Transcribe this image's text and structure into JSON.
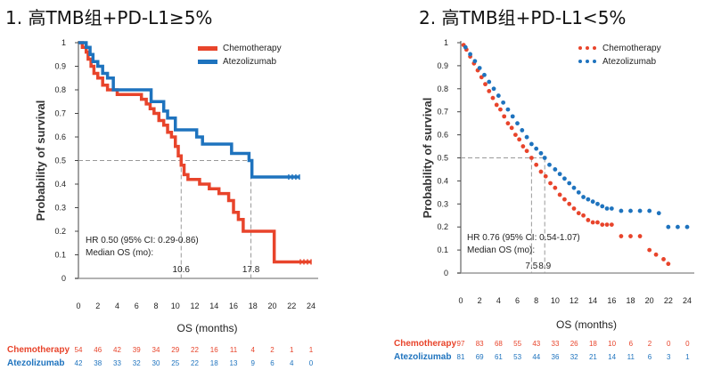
{
  "titles": [
    "1. 高TMB组+PD-L1≥5%",
    "2. 高TMB组+PD-L1<5%"
  ],
  "colors": {
    "chemo": "#e8442b",
    "atezo": "#1e73be",
    "grid": "#999999"
  },
  "chart_data": [
    {
      "type": "line",
      "ylabel": "Probability of survival",
      "xlabel": "OS (months)",
      "xlim": [
        0,
        24
      ],
      "ylim": [
        0,
        1
      ],
      "xticks": [
        0,
        2,
        4,
        6,
        8,
        10,
        12,
        14,
        16,
        18,
        20,
        22,
        24
      ],
      "yticks": [
        "0",
        "0.1",
        "0.2",
        "0.3",
        "0.4",
        "0.5",
        "0.6",
        "0.7",
        "0.8",
        "0.9",
        "1"
      ],
      "legend": [
        "Chemotherapy",
        "Atezolizumab"
      ],
      "annotation": [
        "HR 0.50 (95% CI: 0.29-0.86)",
        "Median OS (mo):"
      ],
      "median_labels": [
        "10.6",
        "17.8"
      ],
      "medians": [
        10.6,
        17.8
      ],
      "series": [
        {
          "name": "Chemotherapy",
          "style": "step",
          "points": [
            [
              0,
              1
            ],
            [
              0.4,
              0.98
            ],
            [
              0.8,
              0.96
            ],
            [
              1,
              0.93
            ],
            [
              1.3,
              0.9
            ],
            [
              1.6,
              0.87
            ],
            [
              2,
              0.85
            ],
            [
              2.5,
              0.82
            ],
            [
              3,
              0.8
            ],
            [
              4,
              0.78
            ],
            [
              6.5,
              0.76
            ],
            [
              7,
              0.74
            ],
            [
              7.4,
              0.72
            ],
            [
              7.8,
              0.7
            ],
            [
              8.3,
              0.67
            ],
            [
              8.8,
              0.65
            ],
            [
              9.2,
              0.62
            ],
            [
              9.6,
              0.6
            ],
            [
              10,
              0.56
            ],
            [
              10.3,
              0.52
            ],
            [
              10.6,
              0.48
            ],
            [
              10.9,
              0.44
            ],
            [
              11.3,
              0.42
            ],
            [
              12.5,
              0.4
            ],
            [
              13.5,
              0.38
            ],
            [
              14.5,
              0.36
            ],
            [
              15.5,
              0.33
            ],
            [
              16,
              0.28
            ],
            [
              16.5,
              0.25
            ],
            [
              17,
              0.2
            ],
            [
              17.8,
              0.2
            ],
            [
              20.2,
              0.07
            ],
            [
              24,
              0.07
            ]
          ]
        },
        {
          "name": "Atezolizumab",
          "style": "step",
          "points": [
            [
              0,
              1
            ],
            [
              0.8,
              0.98
            ],
            [
              1.2,
              0.95
            ],
            [
              1.5,
              0.92
            ],
            [
              2,
              0.9
            ],
            [
              2.5,
              0.87
            ],
            [
              3,
              0.85
            ],
            [
              3.6,
              0.8
            ],
            [
              4.5,
              0.8
            ],
            [
              7.5,
              0.75
            ],
            [
              8.8,
              0.71
            ],
            [
              9.2,
              0.68
            ],
            [
              10,
              0.63
            ],
            [
              12.2,
              0.6
            ],
            [
              12.8,
              0.57
            ],
            [
              15.8,
              0.53
            ],
            [
              17.6,
              0.5
            ],
            [
              17.9,
              0.43
            ],
            [
              22.8,
              0.43
            ]
          ]
        }
      ]
    },
    {
      "type": "scatter",
      "ylabel": "Probability of survival",
      "xlabel": "OS (months)",
      "xlim": [
        0,
        24
      ],
      "ylim": [
        0,
        1
      ],
      "xticks": [
        0,
        2,
        4,
        6,
        8,
        10,
        12,
        14,
        16,
        18,
        20,
        22,
        24
      ],
      "yticks": [
        "0",
        "0.1",
        "0.2",
        "0.3",
        "0.4",
        "0.5",
        "0.6",
        "0.7",
        "0.8",
        "0.9",
        "1"
      ],
      "legend": [
        "Chemotherapy",
        "Atezolizumab"
      ],
      "annotation": [
        "HR 0.76 (95% CI: 0.54-1.07)",
        "Median OS (mo):"
      ],
      "median_labels": [
        "7.5",
        "8.9"
      ],
      "medians": [
        7.5,
        8.9
      ],
      "series": [
        {
          "name": "Chemotherapy",
          "style": "dots",
          "points": [
            [
              0.3,
              0.99
            ],
            [
              0.6,
              0.97
            ],
            [
              1,
              0.94
            ],
            [
              1.4,
              0.91
            ],
            [
              1.8,
              0.88
            ],
            [
              2.2,
              0.85
            ],
            [
              2.6,
              0.82
            ],
            [
              3,
              0.79
            ],
            [
              3.4,
              0.76
            ],
            [
              3.8,
              0.73
            ],
            [
              4.2,
              0.71
            ],
            [
              4.6,
              0.68
            ],
            [
              5,
              0.65
            ],
            [
              5.4,
              0.63
            ],
            [
              5.8,
              0.6
            ],
            [
              6.2,
              0.58
            ],
            [
              6.6,
              0.55
            ],
            [
              7,
              0.53
            ],
            [
              7.5,
              0.5
            ],
            [
              8,
              0.47
            ],
            [
              8.5,
              0.44
            ],
            [
              9,
              0.42
            ],
            [
              9.5,
              0.39
            ],
            [
              10,
              0.37
            ],
            [
              10.5,
              0.34
            ],
            [
              11,
              0.32
            ],
            [
              11.5,
              0.3
            ],
            [
              12,
              0.28
            ],
            [
              12.5,
              0.26
            ],
            [
              13,
              0.25
            ],
            [
              13.5,
              0.23
            ],
            [
              14,
              0.22
            ],
            [
              14.5,
              0.22
            ],
            [
              15,
              0.21
            ],
            [
              15.5,
              0.21
            ],
            [
              16,
              0.21
            ],
            [
              17,
              0.16
            ],
            [
              18,
              0.16
            ],
            [
              19,
              0.16
            ],
            [
              20,
              0.1
            ],
            [
              20.7,
              0.08
            ],
            [
              21.5,
              0.06
            ],
            [
              22,
              0.04
            ]
          ]
        },
        {
          "name": "Atezolizumab",
          "style": "dots",
          "points": [
            [
              0.5,
              0.98
            ],
            [
              1,
              0.95
            ],
            [
              1.5,
              0.92
            ],
            [
              2,
              0.89
            ],
            [
              2.5,
              0.86
            ],
            [
              3,
              0.83
            ],
            [
              3.5,
              0.8
            ],
            [
              4,
              0.77
            ],
            [
              4.5,
              0.74
            ],
            [
              5,
              0.71
            ],
            [
              5.5,
              0.68
            ],
            [
              6,
              0.65
            ],
            [
              6.5,
              0.62
            ],
            [
              7,
              0.59
            ],
            [
              7.5,
              0.56
            ],
            [
              8,
              0.54
            ],
            [
              8.5,
              0.52
            ],
            [
              8.9,
              0.5
            ],
            [
              9.4,
              0.47
            ],
            [
              10,
              0.45
            ],
            [
              10.5,
              0.43
            ],
            [
              11,
              0.41
            ],
            [
              11.5,
              0.39
            ],
            [
              12,
              0.37
            ],
            [
              12.5,
              0.35
            ],
            [
              13,
              0.33
            ],
            [
              13.5,
              0.32
            ],
            [
              14,
              0.31
            ],
            [
              14.5,
              0.3
            ],
            [
              15,
              0.29
            ],
            [
              15.5,
              0.28
            ],
            [
              16,
              0.28
            ],
            [
              17,
              0.27
            ],
            [
              18,
              0.27
            ],
            [
              19,
              0.27
            ],
            [
              20,
              0.27
            ],
            [
              21,
              0.26
            ],
            [
              22,
              0.2
            ],
            [
              23,
              0.2
            ],
            [
              24,
              0.2
            ]
          ]
        }
      ]
    }
  ],
  "risk_tables": [
    {
      "rows": [
        {
          "label": "Chemotherapy",
          "values": [
            "54",
            "46",
            "42",
            "39",
            "34",
            "29",
            "22",
            "16",
            "11",
            "4",
            "2",
            "1",
            "1"
          ]
        },
        {
          "label": "Atezolizumab",
          "values": [
            "42",
            "38",
            "33",
            "32",
            "30",
            "25",
            "22",
            "18",
            "13",
            "9",
            "6",
            "4",
            "0"
          ]
        }
      ]
    },
    {
      "rows": [
        {
          "label": "Chemotherapy",
          "values": [
            "97",
            "83",
            "68",
            "55",
            "43",
            "33",
            "26",
            "18",
            "10",
            "6",
            "2",
            "0",
            "0"
          ]
        },
        {
          "label": "Atezolizumab",
          "values": [
            "81",
            "69",
            "61",
            "53",
            "44",
            "36",
            "32",
            "21",
            "14",
            "11",
            "6",
            "3",
            "1"
          ]
        }
      ]
    }
  ]
}
